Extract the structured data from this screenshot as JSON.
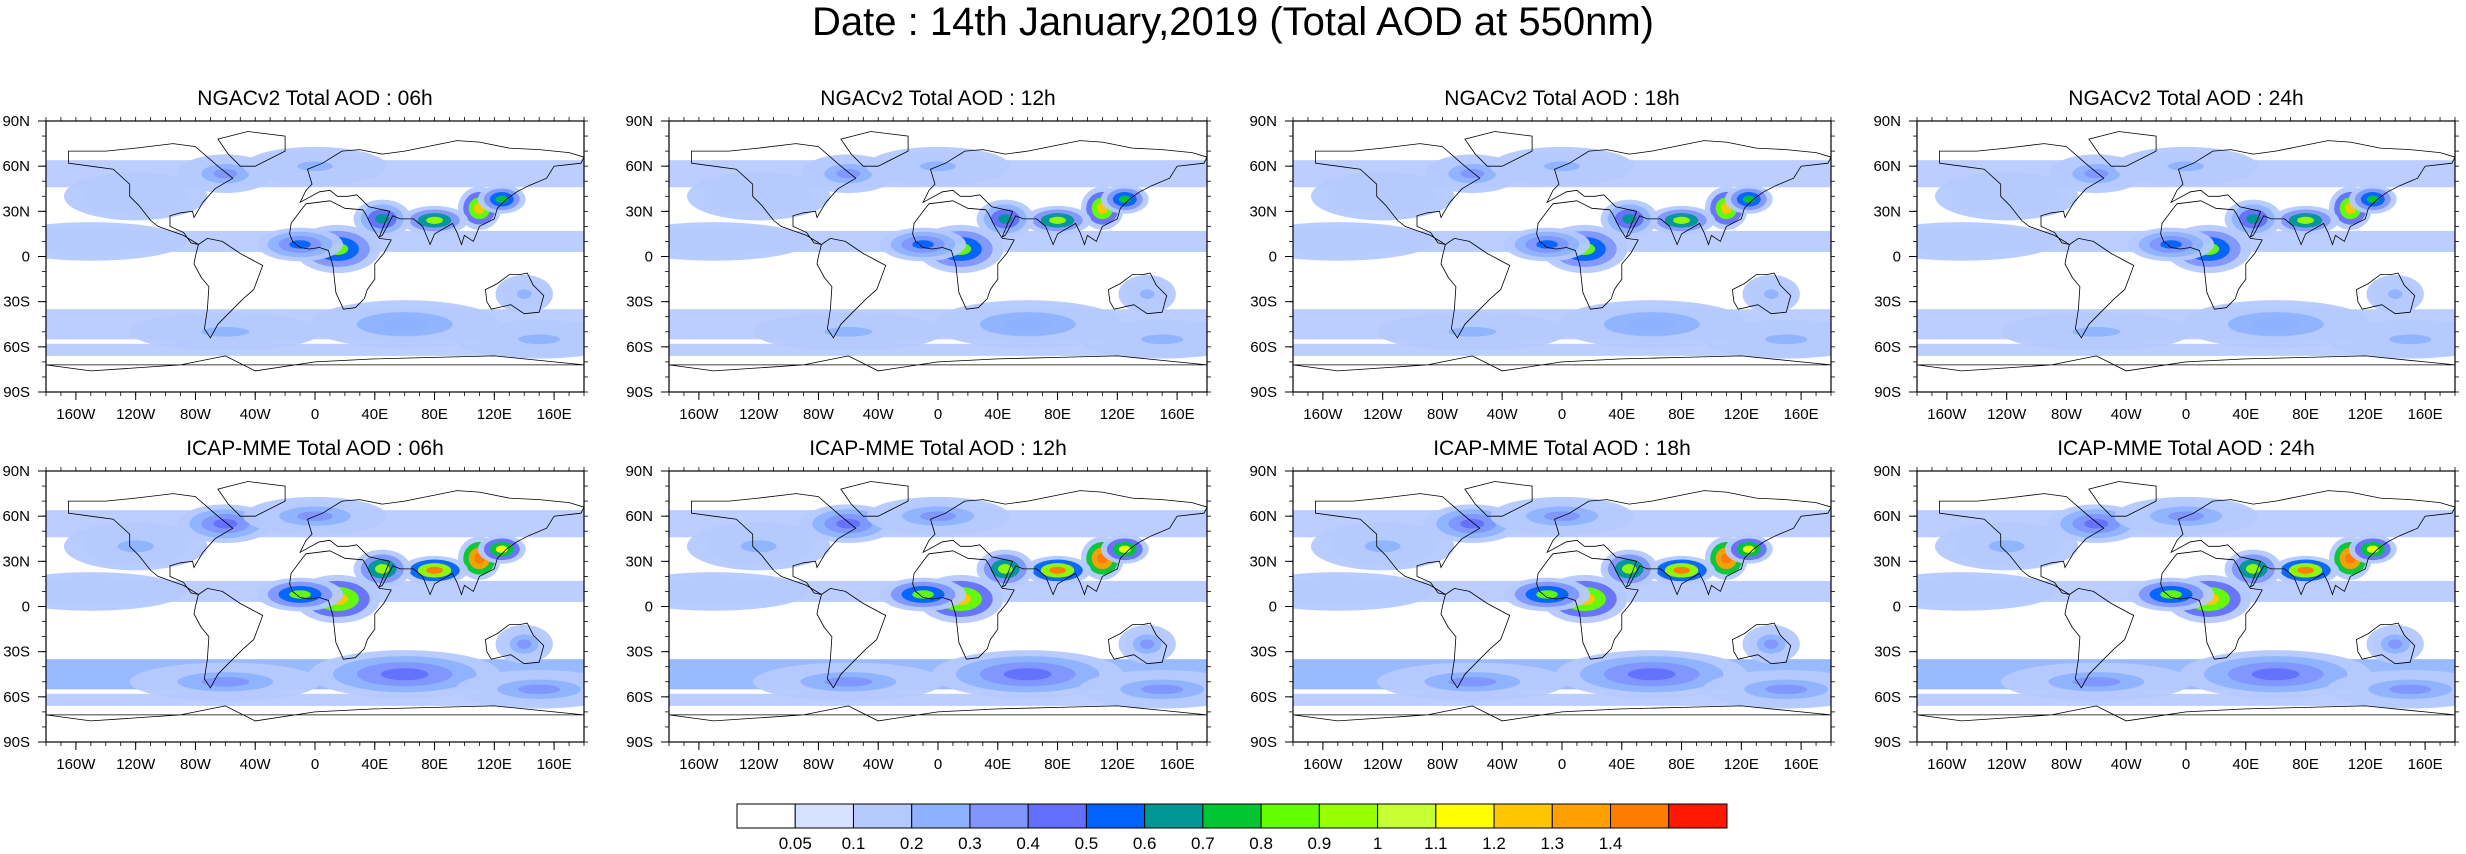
{
  "title": "Date : 14th January,2019 (Total AOD at 550nm)",
  "chart_data": {
    "type": "heatmap",
    "title": "Date : 14th January,2019 (Total AOD at 550nm)",
    "x_ticks": [
      "160W",
      "120W",
      "80W",
      "40W",
      "0",
      "40E",
      "80E",
      "120E",
      "160E"
    ],
    "x_tick_values": [
      -160,
      -120,
      -80,
      -40,
      0,
      40,
      80,
      120,
      160
    ],
    "y_ticks": [
      "90N",
      "60N",
      "30N",
      "0",
      "30S",
      "60S",
      "90S"
    ],
    "y_tick_values": [
      90,
      60,
      30,
      0,
      -30,
      -60,
      -90
    ],
    "xlim": [
      -180,
      180
    ],
    "ylim": [
      -90,
      90
    ],
    "panels": [
      {
        "title": "NGACv2 Total AOD : 06h",
        "model": "NGACv2",
        "hour": "06h",
        "intensity": 1.0
      },
      {
        "title": "NGACv2 Total AOD : 12h",
        "model": "NGACv2",
        "hour": "12h",
        "intensity": 1.0
      },
      {
        "title": "NGACv2 Total AOD : 18h",
        "model": "NGACv2",
        "hour": "18h",
        "intensity": 1.0
      },
      {
        "title": "NGACv2 Total AOD : 24h",
        "model": "NGACv2",
        "hour": "24h",
        "intensity": 1.0
      },
      {
        "title": "ICAP-MME Total AOD : 06h",
        "model": "ICAP-MME",
        "hour": "06h",
        "intensity": 1.6
      },
      {
        "title": "ICAP-MME Total AOD : 12h",
        "model": "ICAP-MME",
        "hour": "12h",
        "intensity": 1.6
      },
      {
        "title": "ICAP-MME Total AOD : 18h",
        "model": "ICAP-MME",
        "hour": "18h",
        "intensity": 1.6
      },
      {
        "title": "ICAP-MME Total AOD : 24h",
        "model": "ICAP-MME",
        "hour": "24h",
        "intensity": 1.6
      }
    ],
    "colorbar": {
      "labels": [
        "0.05",
        "0.1",
        "0.2",
        "0.3",
        "0.4",
        "0.5",
        "0.6",
        "0.7",
        "0.8",
        "0.9",
        "1",
        "1.1",
        "1.2",
        "1.3",
        "1.4"
      ],
      "colors": [
        "#ffffff",
        "#d6e2ff",
        "#b5c9ff",
        "#8eb2ff",
        "#7f96ff",
        "#6370ff",
        "#0063ff",
        "#009696",
        "#00c633",
        "#63ff00",
        "#96ff00",
        "#c6ff33",
        "#ffff00",
        "#ffc600",
        "#ffa000",
        "#ff7c00",
        "#ff1900"
      ]
    },
    "hotspots": [
      {
        "lon": 110,
        "lat": 32,
        "rx": 9,
        "ry": 9,
        "aod": 1.2
      },
      {
        "lon": 80,
        "lat": 24,
        "rx": 14,
        "ry": 6,
        "aod": 0.9
      },
      {
        "lon": 15,
        "lat": 5,
        "rx": 18,
        "ry": 10,
        "aod": 0.8
      },
      {
        "lon": 45,
        "lat": 25,
        "rx": 12,
        "ry": 8,
        "aod": 0.6
      },
      {
        "lon": -10,
        "lat": 8,
        "rx": 18,
        "ry": 7,
        "aod": 0.5
      },
      {
        "lon": 125,
        "lat": 38,
        "rx": 10,
        "ry": 6,
        "aod": 0.7
      },
      {
        "lon": -60,
        "lat": 55,
        "rx": 20,
        "ry": 8,
        "aod": 0.3
      },
      {
        "lon": 0,
        "lat": 60,
        "rx": 30,
        "ry": 8,
        "aod": 0.2
      },
      {
        "lon": -120,
        "lat": 40,
        "rx": 30,
        "ry": 10,
        "aod": 0.15
      },
      {
        "lon": 60,
        "lat": -45,
        "rx": 40,
        "ry": 10,
        "aod": 0.25
      },
      {
        "lon": -60,
        "lat": -50,
        "rx": 40,
        "ry": 8,
        "aod": 0.2
      },
      {
        "lon": 150,
        "lat": -55,
        "rx": 35,
        "ry": 8,
        "aod": 0.2
      },
      {
        "lon": 140,
        "lat": -25,
        "rx": 12,
        "ry": 8,
        "aod": 0.2
      },
      {
        "lon": -150,
        "lat": 10,
        "rx": 40,
        "ry": 8,
        "aod": 0.12
      }
    ]
  }
}
